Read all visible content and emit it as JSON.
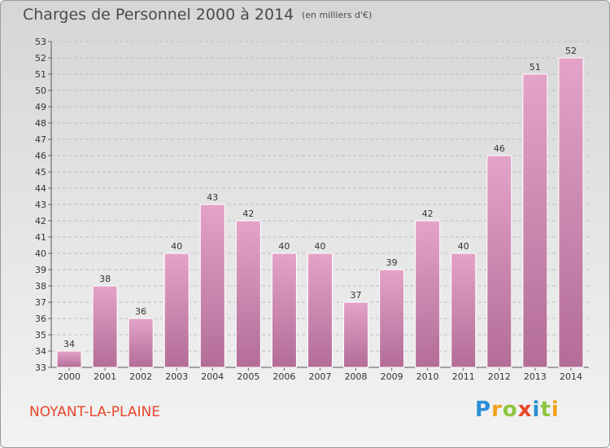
{
  "title": "Charges de Personnel 2000 à 2014",
  "unit_note": "(en milliers d'€)",
  "commune": "NOYANT-LA-PLAINE",
  "logo": {
    "letters": [
      "P",
      "r",
      "o",
      "x",
      "i",
      "t",
      "i"
    ],
    "colors": [
      "#2a8fd6",
      "#f2a11c",
      "#8cc63f",
      "#e8462a",
      "#2a8fd6",
      "#8cc63f",
      "#f2a11c"
    ]
  },
  "colors": {
    "bar_top": "#e4a3c8",
    "bar_bottom": "#b36d97",
    "commune": "#e8462a"
  },
  "chart_data": {
    "type": "bar",
    "categories": [
      "2000",
      "2001",
      "2002",
      "2003",
      "2004",
      "2005",
      "2006",
      "2007",
      "2008",
      "2009",
      "2010",
      "2011",
      "2012",
      "2013",
      "2014"
    ],
    "values": [
      34,
      38,
      36,
      40,
      43,
      42,
      40,
      40,
      37,
      39,
      42,
      40,
      46,
      51,
      52
    ],
    "ylim": [
      33,
      53
    ],
    "yticks": [
      33,
      34,
      35,
      36,
      37,
      38,
      39,
      40,
      41,
      42,
      43,
      44,
      45,
      46,
      47,
      48,
      49,
      50,
      51,
      52,
      53
    ],
    "grid": true
  }
}
